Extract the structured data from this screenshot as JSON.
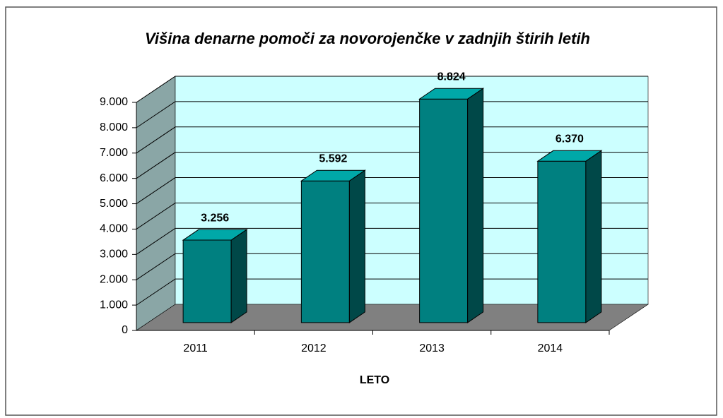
{
  "chart_data": {
    "type": "bar3d",
    "title": "Višina denarne pomoči za novorojenčke v zadnjih štirih letih",
    "x_label": "LETO",
    "categories": [
      "2011",
      "2012",
      "2013",
      "2014"
    ],
    "values": [
      3256,
      5592,
      8824,
      6370
    ],
    "value_labels": [
      "3.256",
      "5.592",
      "8.824",
      "6.370"
    ],
    "color": "#008080",
    "ylim": [
      0,
      9000
    ],
    "yticks": [
      0,
      {
        "value": 1000,
        "label": "1.000"
      },
      {
        "value": 2000,
        "label": "2.000"
      },
      {
        "value": 3000,
        "label": "3.000"
      },
      {
        "value": 4000,
        "label": "4.000"
      },
      {
        "value": 5000,
        "label": "5.000"
      },
      {
        "value": 6000,
        "label": "6.000"
      },
      {
        "value": 7000,
        "label": "7.000"
      },
      {
        "value": 8000,
        "label": "8.000"
      },
      {
        "value": 9000,
        "label": "9.000"
      }
    ],
    "grid": true
  }
}
